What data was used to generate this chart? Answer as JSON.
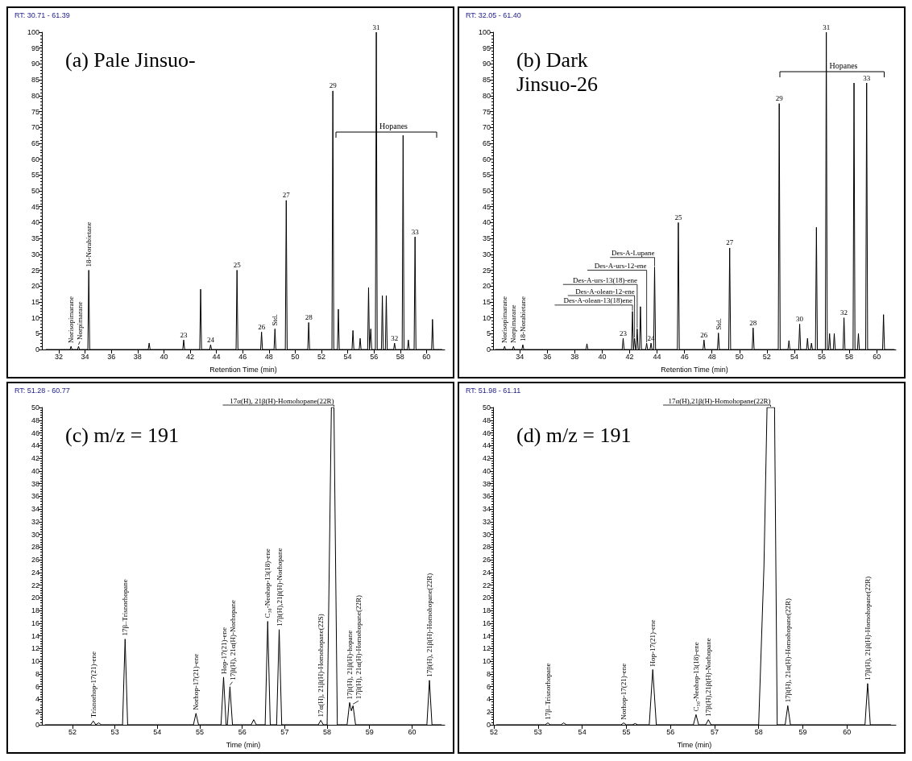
{
  "chart_data": [
    {
      "type": "line",
      "title": "(a) Pale Jinsuo-",
      "xlabel": "Retention Time (min)",
      "xlim": [
        30.71,
        61.39
      ],
      "ylim": [
        0,
        100
      ],
      "xticks": [
        32,
        34,
        36,
        38,
        40,
        42,
        44,
        46,
        48,
        50,
        52,
        54,
        56,
        58,
        60
      ],
      "yticks": [
        0,
        5,
        10,
        15,
        20,
        25,
        30,
        35,
        40,
        45,
        50,
        55,
        60,
        65,
        70,
        75,
        80,
        85,
        90,
        95,
        100
      ],
      "series": [
        {
          "color": "#000000",
          "x": [
            31,
            32.86,
            32.93,
            33.0,
            33.43,
            33.5,
            33.57,
            34.21,
            34.28,
            34.35,
            38.81,
            38.88,
            38.95,
            41.44,
            41.51,
            41.58,
            42.73,
            42.8,
            42.87,
            43.49,
            43.56,
            43.63,
            45.5,
            45.57,
            45.64,
            47.37,
            47.44,
            47.51,
            48.39,
            48.46,
            48.53,
            49.25,
            49.32,
            49.39,
            50.96,
            51.03,
            51.1,
            52.8,
            52.87,
            52.94,
            53.22,
            53.29,
            53.36,
            54.33,
            54.4,
            54.47,
            54.88,
            54.95,
            55.02,
            55.52,
            55.59,
            55.66,
            55.69,
            55.76,
            55.83,
            56.11,
            56.18,
            56.25,
            56.57,
            56.64,
            56.71,
            56.87,
            56.94,
            57.01,
            57.5,
            57.57,
            57.64,
            58.15,
            58.22,
            58.29,
            58.55,
            58.62,
            58.69,
            59.06,
            59.13,
            59.2,
            60.39,
            60.46,
            60.53,
            61.2
          ],
          "values": [
            0,
            0,
            1,
            0,
            0,
            1,
            0,
            0,
            25,
            0,
            0,
            2,
            0,
            0,
            3,
            0,
            0,
            19,
            0,
            0,
            1.5,
            0,
            0,
            25,
            0,
            0,
            5.5,
            0,
            0,
            6.5,
            0,
            0,
            47,
            0,
            0,
            8.5,
            0,
            0,
            81.5,
            0,
            0,
            12.7,
            0,
            0,
            6,
            0,
            0,
            3.5,
            0,
            0,
            19.5,
            0,
            0,
            6.5,
            0,
            0,
            100,
            0,
            0,
            17,
            0,
            0,
            17,
            0,
            0,
            2,
            0,
            0,
            67.5,
            0,
            0,
            3,
            0,
            0,
            35.5,
            0,
            0,
            9.5,
            0,
            0
          ]
        }
      ],
      "annotations": [
        "RT: 30.71 - 61.39",
        "Hopanes",
        {
          "text": "Norisopimarane",
          "x": 32.93,
          "y": 1
        },
        {
          "text": "Norpimarane",
          "x": 33.5,
          "y": 1
        },
        {
          "text": "18-Norabietane",
          "x": 34.28,
          "y": 25
        },
        {
          "text": "23",
          "x": 41.51,
          "y": 3
        },
        {
          "text": "24",
          "x": 43.56,
          "y": 1.5
        },
        {
          "text": "25",
          "x": 45.57,
          "y": 25
        },
        {
          "text": "26",
          "x": 47.44,
          "y": 5.5
        },
        {
          "text": "Std.",
          "x": 48.46,
          "y": 6.5
        },
        {
          "text": "27",
          "x": 49.32,
          "y": 47
        },
        {
          "text": "28",
          "x": 51.03,
          "y": 8.5
        },
        {
          "text": "29",
          "x": 52.87,
          "y": 81.5
        },
        {
          "text": "31",
          "x": 56.18,
          "y": 100
        },
        {
          "text": "32",
          "x": 57.57,
          "y": 2
        },
        {
          "text": "33",
          "x": 59.13,
          "y": 35.5
        }
      ]
    },
    {
      "type": "line",
      "title": "(b) Dark Jinsuo-26",
      "xlabel": "Retention Time (min)",
      "xlim": [
        32.05,
        61.4
      ],
      "ylim": [
        0,
        100
      ],
      "xticks": [
        34,
        36,
        38,
        40,
        42,
        44,
        46,
        48,
        50,
        52,
        54,
        56,
        58,
        60
      ],
      "yticks": [
        0,
        5,
        10,
        15,
        20,
        25,
        30,
        35,
        40,
        45,
        50,
        55,
        60,
        65,
        70,
        75,
        80,
        85,
        90,
        95,
        100
      ],
      "series": [
        {
          "color": "#000000",
          "x": [
            32.2,
            32.82,
            32.89,
            32.96,
            33.47,
            33.54,
            33.61,
            34.15,
            34.22,
            34.29,
            38.82,
            38.89,
            38.96,
            41.46,
            41.53,
            41.6,
            42.14,
            42.21,
            42.28,
            42.29,
            42.36,
            42.43,
            42.48,
            42.55,
            42.62,
            42.72,
            42.79,
            42.86,
            43.17,
            43.24,
            43.31,
            43.49,
            43.56,
            43.63,
            43.75,
            43.82,
            43.89,
            45.48,
            45.55,
            45.62,
            47.35,
            47.42,
            47.49,
            48.4,
            48.47,
            48.54,
            49.22,
            49.29,
            49.36,
            50.93,
            51.0,
            51.07,
            52.83,
            52.9,
            52.97,
            53.54,
            53.61,
            53.68,
            54.32,
            54.39,
            54.46,
            54.89,
            54.96,
            55.03,
            55.18,
            55.25,
            55.32,
            55.54,
            55.61,
            55.68,
            56.26,
            56.33,
            56.4,
            56.5,
            56.57,
            56.64,
            56.84,
            56.91,
            56.98,
            57.55,
            57.62,
            57.69,
            58.28,
            58.35,
            58.42,
            58.6,
            58.67,
            58.74,
            59.2,
            59.27,
            59.34,
            60.43,
            60.5,
            60.57,
            61.3
          ],
          "values": [
            0,
            0,
            1,
            0,
            0,
            1,
            0,
            0,
            1.5,
            0,
            0,
            1.8,
            0,
            0,
            3.5,
            0,
            0,
            12,
            0,
            0,
            3.5,
            0,
            0,
            6.5,
            0,
            0,
            13.5,
            0,
            0,
            2,
            0,
            0,
            2,
            0,
            0,
            26,
            0,
            0,
            40,
            0,
            0,
            3,
            0,
            0,
            5.2,
            0,
            0,
            32,
            0,
            0,
            6.8,
            0,
            0,
            77.5,
            0,
            0,
            2.8,
            0,
            0,
            8,
            0,
            0,
            3.5,
            0,
            0,
            2,
            0,
            0,
            38.5,
            0,
            0,
            100,
            0,
            0,
            5,
            0,
            0,
            5,
            0,
            0,
            10,
            0,
            0,
            84,
            0,
            0,
            5,
            0,
            0,
            84,
            0,
            0,
            11,
            0,
            0
          ]
        }
      ],
      "annotations": [
        "RT: 32.05 - 61.40",
        "Hopanes",
        {
          "text": "Norisopimarane",
          "x": 32.89,
          "y": 1
        },
        {
          "text": "Norpimarane",
          "x": 33.54,
          "y": 1
        },
        {
          "text": "18-Norabietane",
          "x": 34.22,
          "y": 1.5
        },
        {
          "text": "23",
          "x": 41.53,
          "y": 3.5
        },
        {
          "text": "Des-A-olean-13(18)ene",
          "x": 42.21,
          "y": 12
        },
        {
          "text": "Des-A-olean-12-ene",
          "x": 42.36,
          "y": 3.5
        },
        {
          "text": "Des-A-urs-13(18)-ene",
          "x": 42.55,
          "y": 6.5
        },
        {
          "text": "Des-A-urs-12-ene",
          "x": 43.24,
          "y": 2
        },
        {
          "text": "24",
          "x": 43.56,
          "y": 2
        },
        {
          "text": "Des-A-Lupane",
          "x": 43.82,
          "y": 26
        },
        {
          "text": "25",
          "x": 45.55,
          "y": 40
        },
        {
          "text": "26",
          "x": 47.42,
          "y": 3
        },
        {
          "text": "Std.",
          "x": 48.47,
          "y": 5.2
        },
        {
          "text": "27",
          "x": 49.29,
          "y": 32
        },
        {
          "text": "28",
          "x": 51.0,
          "y": 6.8
        },
        {
          "text": "29",
          "x": 52.9,
          "y": 77.5
        },
        {
          "text": "30",
          "x": 54.39,
          "y": 8
        },
        {
          "text": "31",
          "x": 56.33,
          "y": 100
        },
        {
          "text": "32",
          "x": 57.62,
          "y": 10
        },
        {
          "text": "33",
          "x": 59.27,
          "y": 84
        }
      ]
    },
    {
      "type": "line",
      "title": "(c) m/z = 191",
      "xlabel": "Time (min)",
      "xlim": [
        51.28,
        60.77
      ],
      "ylim": [
        0,
        50
      ],
      "xticks": [
        52,
        53,
        54,
        55,
        56,
        57,
        58,
        59,
        60
      ],
      "yticks": [
        0,
        2,
        4,
        6,
        8,
        10,
        12,
        14,
        16,
        18,
        20,
        22,
        24,
        26,
        28,
        30,
        32,
        34,
        36,
        38,
        40,
        42,
        44,
        46,
        48,
        50
      ],
      "series": [
        {
          "color": "#000000",
          "x": [
            51.35,
            52.43,
            52.49,
            52.55,
            52.56,
            52.62,
            52.68,
            53.18,
            53.24,
            53.3,
            54.85,
            54.91,
            54.97,
            55.5,
            55.56,
            55.62,
            55.65,
            55.71,
            55.77,
            56.21,
            56.27,
            56.33,
            56.54,
            56.6,
            56.66,
            56.81,
            56.87,
            56.93,
            57.79,
            57.85,
            57.91,
            58.0,
            58.1,
            58.16,
            58.24,
            58.47,
            58.53,
            58.57,
            58.61,
            58.67,
            60.35,
            60.41,
            60.47,
            60.7
          ],
          "values": [
            0,
            0,
            0.6,
            0,
            0,
            0.3,
            0,
            0,
            13.5,
            0,
            0,
            1.8,
            0,
            0,
            7.5,
            0,
            0,
            6,
            0,
            0,
            0.8,
            0,
            0,
            16.3,
            0,
            0,
            15,
            0,
            0,
            0.7,
            0,
            0,
            50,
            50,
            0,
            0,
            3.5,
            2.2,
            3,
            0,
            0,
            7,
            0,
            0
          ]
        }
      ],
      "annotations": [
        "RT: 51.28 - 60.77",
        {
          "text": "Trisnorhop-17(21)-ene",
          "x": 52.49,
          "y": 0.6
        },
        {
          "text": "17β–Trisnorhopane",
          "x": 53.24,
          "y": 13.5
        },
        {
          "text": "Norhop-17(21)-ene",
          "x": 54.91,
          "y": 1.8
        },
        {
          "text": "Hop-17(21)-ene",
          "x": 55.56,
          "y": 7.5
        },
        {
          "text": "17β(H), 21α(H)-Norhopane",
          "x": 55.71,
          "y": 6
        },
        {
          "text": "C₃₀-Neohop-13(18)-ene",
          "x": 56.6,
          "y": 16.3
        },
        {
          "text": "17β(H),21β(H)-Norhopane",
          "x": 56.87,
          "y": 15
        },
        {
          "text": "17α(H), 21β(H)-Homohopane(22S)",
          "x": 57.85,
          "y": 0.7
        },
        {
          "text": "17α(H), 21β(H)-Homohopane(22R)",
          "x": 58.16,
          "y": 50
        },
        {
          "text": "17β(H), 21β(H)-hopane",
          "x": 58.53,
          "y": 3.5
        },
        {
          "text": "17β(H), 21α(H)-Homohopane(22R)",
          "x": 58.61,
          "y": 3
        },
        {
          "text": "17β(H), 21β(H)-Homohopane(22R)",
          "x": 60.41,
          "y": 7
        }
      ]
    },
    {
      "type": "line",
      "title": "(d) m/z = 191",
      "xlabel": "Time (min)",
      "xlim": [
        51.98,
        61.11
      ],
      "ylim": [
        0,
        50
      ],
      "xticks": [
        52,
        53,
        54,
        55,
        56,
        57,
        58,
        59,
        60
      ],
      "yticks": [
        0,
        2,
        4,
        6,
        8,
        10,
        12,
        14,
        16,
        18,
        20,
        22,
        24,
        26,
        28,
        30,
        32,
        34,
        36,
        38,
        40,
        42,
        44,
        46,
        48,
        50
      ],
      "series": [
        {
          "color": "#000000",
          "x": [
            52.05,
            53.16,
            53.22,
            53.28,
            53.52,
            53.58,
            53.64,
            54.88,
            54.94,
            55.0,
            55.14,
            55.2,
            55.26,
            55.52,
            55.6,
            55.68,
            56.52,
            56.58,
            56.64,
            56.8,
            56.86,
            56.92,
            58.0,
            58.12,
            58.19,
            58.36,
            58.42,
            58.6,
            58.66,
            58.72,
            60.41,
            60.47,
            60.53,
            61.0
          ],
          "values": [
            0,
            0,
            0.3,
            0,
            0,
            0.3,
            0,
            0,
            0.3,
            0,
            0,
            0.2,
            0,
            0,
            8.7,
            0,
            0,
            1.6,
            0,
            0,
            0.8,
            0,
            0,
            25,
            50,
            50,
            0,
            0,
            3,
            0,
            0,
            6.5,
            0,
            0
          ]
        }
      ],
      "annotations": [
        "RT: 51.98 - 61.11",
        {
          "text": "17β–Trisnorhopane",
          "x": 53.22,
          "y": 0.3
        },
        {
          "text": "Norhop-17(21)-ene",
          "x": 54.94,
          "y": 0.3
        },
        {
          "text": "Hop-17(21)-ene",
          "x": 55.6,
          "y": 8.7
        },
        {
          "text": "C₃₀-Neohop-13(18)-ene",
          "x": 56.58,
          "y": 1.6
        },
        {
          "text": "17β(H),21β(H)-Norhopane",
          "x": 56.86,
          "y": 0.8
        },
        {
          "text": "17α(H),21β(H)-Homohopane(22R)",
          "x": 58.27,
          "y": 50
        },
        {
          "text": "17β(H), 21α(H)-Homohopane(22R)",
          "x": 58.66,
          "y": 3
        },
        {
          "text": "17β(H), 21β(H)-Homohopane(22R)",
          "x": 60.47,
          "y": 6.5
        }
      ]
    }
  ]
}
